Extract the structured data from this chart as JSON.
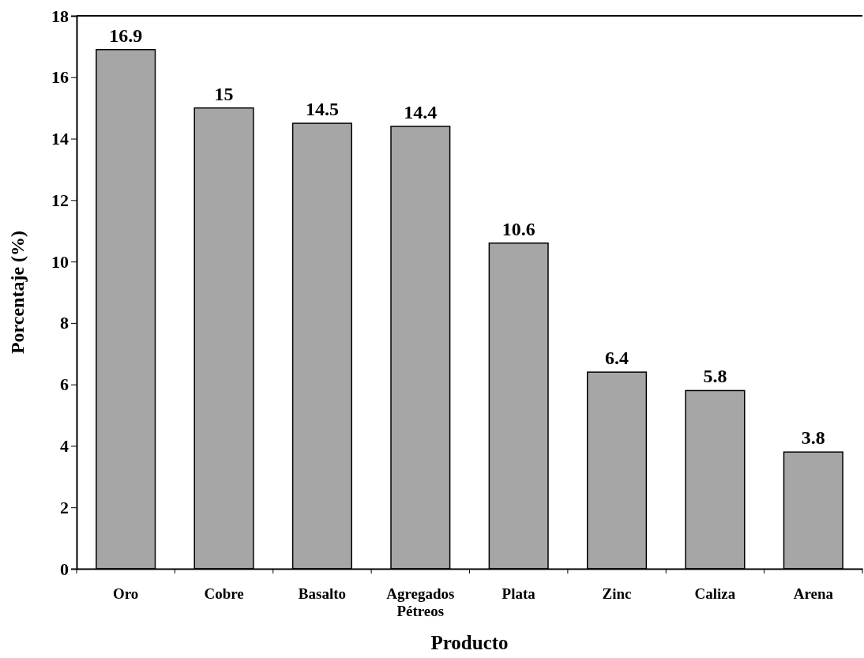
{
  "chart_data": {
    "type": "bar",
    "xlabel": "Producto",
    "ylabel": "Porcentaje (%)",
    "categories": [
      "Oro",
      "Cobre",
      "Basalto",
      "Agregados Pétreos",
      "Plata",
      "Zinc",
      "Caliza",
      "Arena"
    ],
    "values": [
      16.9,
      15,
      14.5,
      14.4,
      10.6,
      6.4,
      5.8,
      3.8
    ],
    "color": "#a6a6a6",
    "ylim": [
      0,
      18
    ],
    "yticks": [
      0,
      2,
      4,
      6,
      8,
      10,
      12,
      14,
      16,
      18
    ],
    "data_labels": true,
    "grid": false
  }
}
